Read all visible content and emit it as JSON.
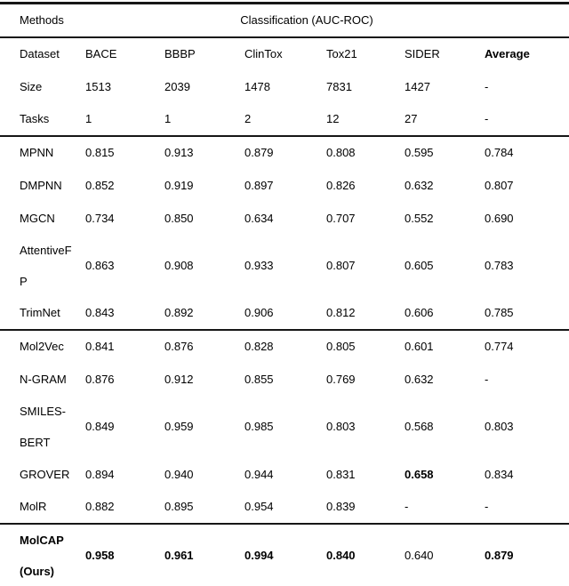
{
  "colors": {
    "text": "#000000",
    "rule": "#161616",
    "background": "#ffffff"
  },
  "table": {
    "corner_label": "Methods",
    "group_header": "Classification (AUC-ROC)",
    "info_rows": [
      {
        "label": "Dataset",
        "values": [
          "BACE",
          "BBBP",
          "ClinTox",
          "Tox21",
          "SIDER",
          "Average"
        ],
        "bold": [
          false,
          false,
          false,
          false,
          false,
          true
        ]
      },
      {
        "label": "Size",
        "values": [
          "1513",
          "2039",
          "1478",
          "7831",
          "1427",
          "-"
        ]
      },
      {
        "label": "Tasks",
        "values": [
          "1",
          "1",
          "2",
          "12",
          "27",
          "-"
        ]
      }
    ],
    "sections": [
      {
        "rows": [
          {
            "label": "MPNN",
            "values": [
              "0.815",
              "0.913",
              "0.879",
              "0.808",
              "0.595",
              "0.784"
            ]
          },
          {
            "label": "DMPNN",
            "values": [
              "0.852",
              "0.919",
              "0.897",
              "0.826",
              "0.632",
              "0.807"
            ]
          },
          {
            "label": "MGCN",
            "values": [
              "0.734",
              "0.850",
              "0.634",
              "0.707",
              "0.552",
              "0.690"
            ]
          },
          {
            "label": "AttentiveFP",
            "break_all": true,
            "values": [
              "0.863",
              "0.908",
              "0.933",
              "0.807",
              "0.605",
              "0.783"
            ]
          },
          {
            "label": "TrimNet",
            "values": [
              "0.843",
              "0.892",
              "0.906",
              "0.812",
              "0.606",
              "0.785"
            ]
          }
        ]
      },
      {
        "rows": [
          {
            "label": "Mol2Vec",
            "values": [
              "0.841",
              "0.876",
              "0.828",
              "0.805",
              "0.601",
              "0.774"
            ]
          },
          {
            "label": "N-GRAM",
            "values": [
              "0.876",
              "0.912",
              "0.855",
              "0.769",
              "0.632",
              "-"
            ]
          },
          {
            "label": "SMILES-BERT",
            "values": [
              "0.849",
              "0.959",
              "0.985",
              "0.803",
              "0.568",
              "0.803"
            ]
          },
          {
            "label": "GROVER",
            "values": [
              "0.894",
              "0.940",
              "0.944",
              "0.831",
              "0.658",
              "0.834"
            ],
            "bold": [
              false,
              false,
              false,
              false,
              true,
              false
            ]
          },
          {
            "label": "MolR",
            "values": [
              "0.882",
              "0.895",
              "0.954",
              "0.839",
              "-",
              "-"
            ]
          }
        ]
      },
      {
        "rows": [
          {
            "label": "MolCAP (Ours)",
            "label_bold": true,
            "values": [
              "0.958",
              "0.961",
              "0.994",
              "0.840",
              "0.640",
              "0.879"
            ],
            "bold": [
              true,
              true,
              true,
              true,
              false,
              true
            ]
          }
        ]
      }
    ]
  }
}
